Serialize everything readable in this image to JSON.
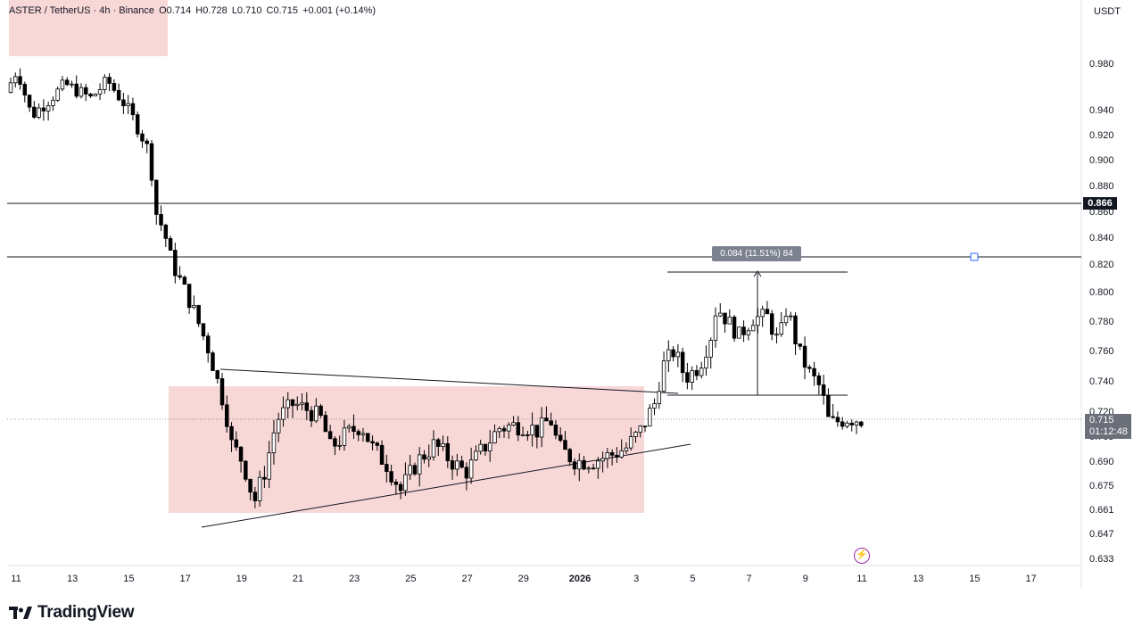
{
  "header": {
    "symbol": "ASTER / TetherUS · 4h · Binance",
    "open": "O0.714",
    "high": "H0.728",
    "low": "L0.710",
    "close": "C0.715",
    "change": "+0.001 (+0.14%)"
  },
  "unit_label": "USDT",
  "price_badge": {
    "price": "0.715",
    "countdown": "01:12:48"
  },
  "level_badge": "0.866",
  "measure_label": "0.084 (11.51%) 84",
  "brand": "TradingView",
  "colors": {
    "bull": "#ffffff",
    "bear": "#000000",
    "zone": "#f8d7d7",
    "line": "#131722",
    "handle": "#2962ff"
  },
  "chart_data": {
    "type": "candlestick",
    "symbol": "ASTER / TetherUS",
    "interval": "4h",
    "exchange": "Binance",
    "y_ticks": [
      "0.980",
      "0.940",
      "0.920",
      "0.900",
      "0.880",
      "0.860",
      "0.840",
      "0.820",
      "0.800",
      "0.780",
      "0.760",
      "0.740",
      "0.720",
      "0.705",
      "0.690",
      "0.675",
      "0.661",
      "0.647",
      "0.633"
    ],
    "x_ticks": [
      "11",
      "13",
      "15",
      "17",
      "19",
      "21",
      "23",
      "25",
      "27",
      "29",
      "2026",
      "3",
      "5",
      "7",
      "9",
      "11",
      "13",
      "15",
      "17"
    ],
    "horizontal_levels": [
      0.866,
      0.824
    ],
    "current_price": 0.715,
    "measurement": {
      "from": 0.73,
      "to": 0.814,
      "delta": 0.084,
      "percent": "11.51%",
      "bars": 84
    },
    "zones": [
      {
        "from_date": "10",
        "to_date": "16",
        "low": 0.982,
        "high": 1.02
      },
      {
        "from_date": "16.6",
        "to_date": "2026-01-01.7",
        "low": 0.659,
        "high": 0.736
      }
    ],
    "trendlines": [
      {
        "from": [
          "18",
          0.656
        ],
        "to": [
          "2026-01-03",
          0.698
        ]
      },
      {
        "from": [
          "19.1",
          0.747
        ],
        "to": [
          "2026-01-02",
          0.735
        ]
      }
    ],
    "candles_count": 296
  }
}
